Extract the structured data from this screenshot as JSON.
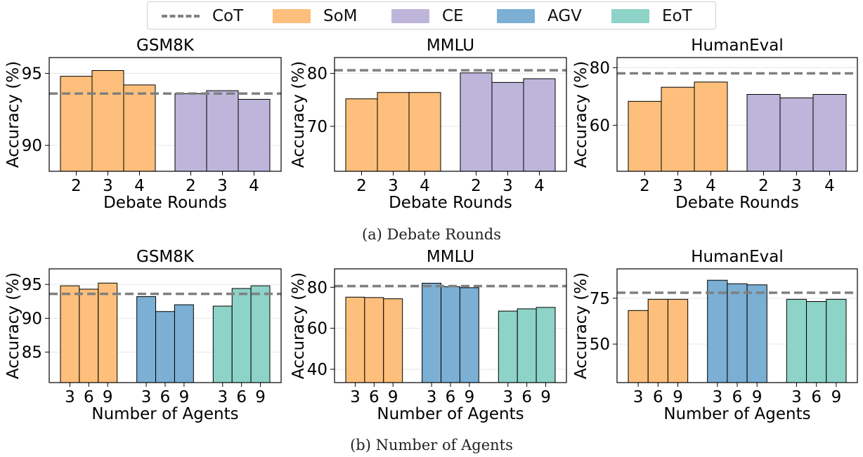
{
  "legend": {
    "items": [
      {
        "label": "CoT",
        "kind": "line",
        "color": "#808080"
      },
      {
        "label": "SoM",
        "kind": "bar",
        "color": "#FDBF7B"
      },
      {
        "label": "CE",
        "kind": "bar",
        "color": "#BEB5DB"
      },
      {
        "label": "AGV",
        "kind": "bar",
        "color": "#7BAFD4"
      },
      {
        "label": "EoT",
        "kind": "bar",
        "color": "#8DD3C7"
      }
    ]
  },
  "captions": {
    "a": "(a) Debate Rounds",
    "b": "(b) Number of Agents"
  },
  "chart_data": [
    {
      "type": "bar",
      "title": "GSM8K",
      "xlabel": "Debate Rounds",
      "ylabel": "Accuracy (%)",
      "ylim": [
        88.2,
        96.1
      ],
      "yticks": [
        90,
        95
      ],
      "grid": true,
      "cot": 93.6,
      "groups": [
        {
          "series": "SoM",
          "categories": [
            "2",
            "3",
            "4"
          ],
          "values": [
            94.8,
            95.2,
            94.2
          ]
        },
        {
          "series": "CE",
          "categories": [
            "2",
            "3",
            "4"
          ],
          "values": [
            93.6,
            93.8,
            93.2
          ]
        }
      ]
    },
    {
      "type": "bar",
      "title": "MMLU",
      "xlabel": "Debate Rounds",
      "ylabel": "Accuracy (%)",
      "ylim": [
        61.5,
        83.0
      ],
      "yticks": [
        70,
        80
      ],
      "grid": true,
      "cot": 80.6,
      "groups": [
        {
          "series": "SoM",
          "categories": [
            "2",
            "3",
            "4"
          ],
          "values": [
            75.2,
            76.4,
            76.4
          ]
        },
        {
          "series": "CE",
          "categories": [
            "2",
            "3",
            "4"
          ],
          "values": [
            80.1,
            78.3,
            79.0
          ]
        }
      ]
    },
    {
      "type": "bar",
      "title": "HumanEval",
      "xlabel": "Debate Rounds",
      "ylabel": "Accuracy (%)",
      "ylim": [
        44.0,
        83.5
      ],
      "yticks": [
        60,
        80
      ],
      "grid": true,
      "cot": 78.0,
      "groups": [
        {
          "series": "SoM",
          "categories": [
            "2",
            "3",
            "4"
          ],
          "values": [
            68.3,
            73.2,
            75.0
          ]
        },
        {
          "series": "CE",
          "categories": [
            "2",
            "3",
            "4"
          ],
          "values": [
            70.7,
            69.5,
            70.7
          ]
        }
      ]
    },
    {
      "type": "bar",
      "title": "GSM8K",
      "xlabel": "Number of Agents",
      "ylabel": "Accuracy (%)",
      "ylim": [
        80.5,
        97.3
      ],
      "yticks": [
        85,
        90,
        95
      ],
      "grid": true,
      "cot": 93.6,
      "groups": [
        {
          "series": "SoM",
          "categories": [
            "3",
            "6",
            "9"
          ],
          "values": [
            94.8,
            94.3,
            95.2
          ]
        },
        {
          "series": "AGV",
          "categories": [
            "3",
            "6",
            "9"
          ],
          "values": [
            93.2,
            91.0,
            92.0
          ]
        },
        {
          "series": "EoT",
          "categories": [
            "3",
            "6",
            "9"
          ],
          "values": [
            91.8,
            94.4,
            94.8
          ]
        }
      ]
    },
    {
      "type": "bar",
      "title": "MMLU",
      "xlabel": "Number of Agents",
      "ylabel": "Accuracy (%)",
      "ylim": [
        33.5,
        89.0
      ],
      "yticks": [
        40,
        60,
        80
      ],
      "grid": true,
      "cot": 80.6,
      "groups": [
        {
          "series": "SoM",
          "categories": [
            "3",
            "6",
            "9"
          ],
          "values": [
            75.2,
            75.0,
            74.4
          ]
        },
        {
          "series": "AGV",
          "categories": [
            "3",
            "6",
            "9"
          ],
          "values": [
            82.0,
            80.3,
            79.8
          ]
        },
        {
          "series": "EoT",
          "categories": [
            "3",
            "6",
            "9"
          ],
          "values": [
            68.4,
            69.5,
            70.2
          ]
        }
      ]
    },
    {
      "type": "bar",
      "title": "HumanEval",
      "xlabel": "Number of Agents",
      "ylabel": "Accuracy (%)",
      "ylim": [
        29.0,
        91.0
      ],
      "yticks": [
        50,
        75
      ],
      "grid": true,
      "cot": 78.0,
      "groups": [
        {
          "series": "SoM",
          "categories": [
            "3",
            "6",
            "9"
          ],
          "values": [
            68.3,
            74.4,
            74.4
          ]
        },
        {
          "series": "AGV",
          "categories": [
            "3",
            "6",
            "9"
          ],
          "values": [
            84.8,
            82.9,
            82.3
          ]
        },
        {
          "series": "EoT",
          "categories": [
            "3",
            "6",
            "9"
          ],
          "values": [
            74.4,
            73.2,
            74.4
          ]
        }
      ]
    }
  ]
}
